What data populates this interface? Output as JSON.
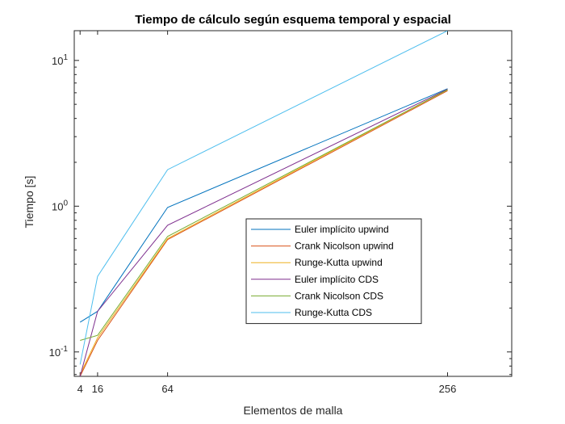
{
  "chart_data": {
    "type": "line",
    "title": "Tiempo de cálculo según esquema temporal y espacial",
    "xlabel": "Elementos de malla",
    "ylabel": "Tiempo [s]",
    "xscale": "linear",
    "yscale": "log",
    "xlim": [
      0,
      300
    ],
    "ylim": [
      0.068,
      16
    ],
    "xticks": [
      4,
      16,
      64,
      256
    ],
    "yticks": [
      {
        "value": 0.1,
        "base": "10",
        "exp": "-1"
      },
      {
        "value": 1,
        "base": "10",
        "exp": "0"
      },
      {
        "value": 10,
        "base": "10",
        "exp": "1"
      }
    ],
    "grid": false,
    "legend_location": "center-right",
    "x": [
      4,
      16,
      64,
      256
    ],
    "series": [
      {
        "name": "Euler implícito upwind",
        "color": "#0072BD",
        "values": [
          0.16,
          0.19,
          0.98,
          6.4
        ]
      },
      {
        "name": "Crank Nicolson upwind",
        "color": "#D95319",
        "values": [
          0.068,
          0.12,
          0.59,
          6.2
        ]
      },
      {
        "name": "Runge-Kutta upwind",
        "color": "#EDB120",
        "values": [
          0.07,
          0.125,
          0.6,
          6.3
        ]
      },
      {
        "name": "Euler implícito CDS",
        "color": "#7E2F8E",
        "values": [
          0.068,
          0.19,
          0.74,
          6.35
        ]
      },
      {
        "name": "Crank Nicolson CDS",
        "color": "#77AC30",
        "values": [
          0.12,
          0.13,
          0.62,
          6.3
        ]
      },
      {
        "name": "Runge-Kutta CDS",
        "color": "#4DBEEE",
        "values": [
          0.082,
          0.33,
          1.78,
          16
        ]
      }
    ]
  }
}
